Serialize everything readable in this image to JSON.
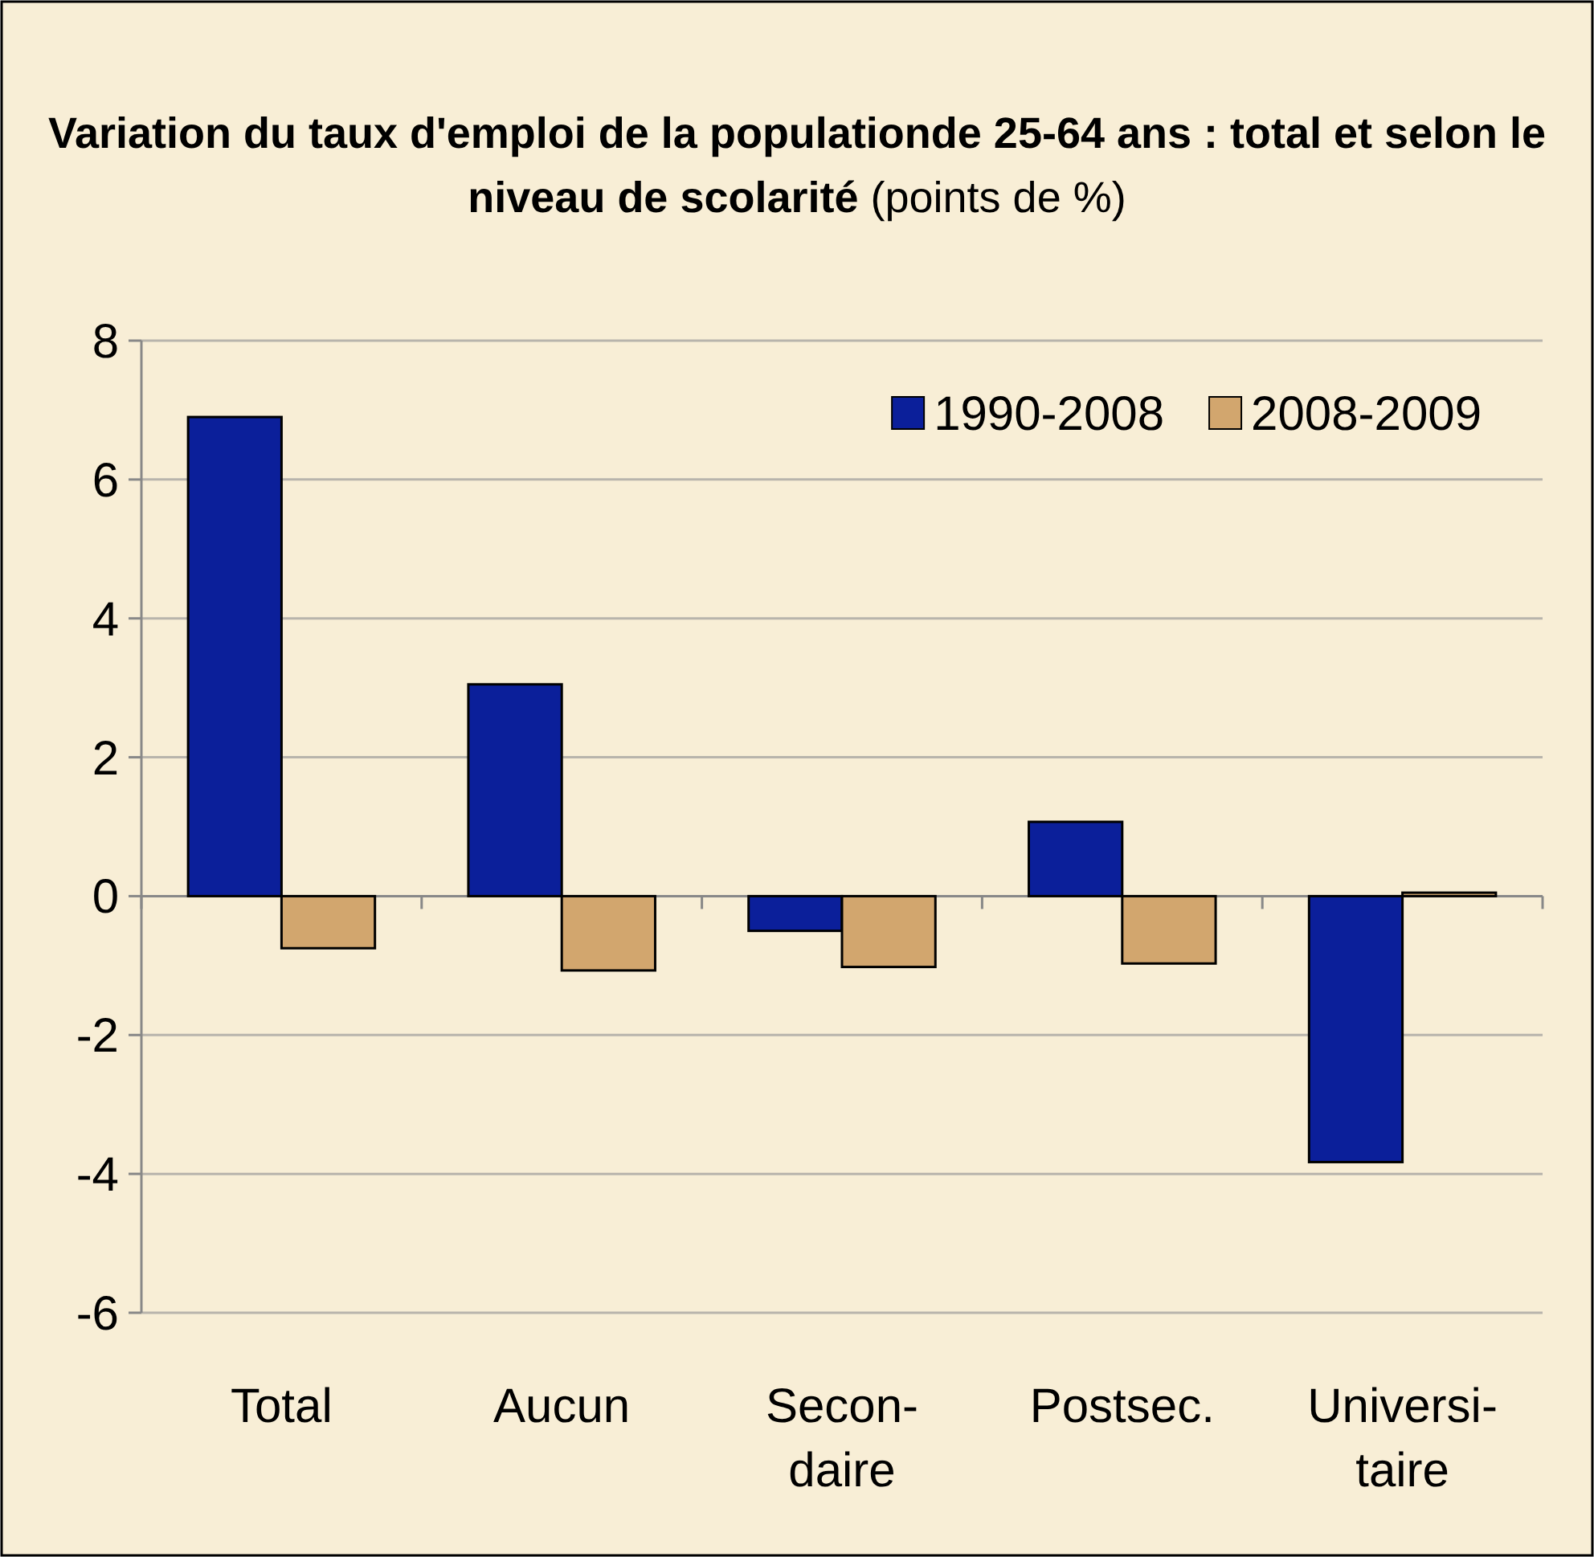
{
  "chart_data": {
    "type": "bar",
    "title": "Variation du taux d'emploi de la populationde 25-64 ans : total et selon le niveau de scolarité",
    "subtitle": "(points de %)",
    "categories": [
      "Total",
      "Aucun",
      "Secon-daire",
      "Postsec.",
      "Universi-taire"
    ],
    "series": [
      {
        "name": "1990-2008",
        "color": "#0b1f9a",
        "values": [
          6.9,
          3.05,
          -0.5,
          1.07,
          -3.83
        ]
      },
      {
        "name": "2008-2009",
        "color": "#d2a66e",
        "values": [
          -0.75,
          -1.07,
          -1.02,
          -0.97,
          0.05
        ]
      }
    ],
    "ylim": [
      -6,
      8
    ],
    "yticks": [
      -6,
      -4,
      -2,
      0,
      2,
      4,
      6,
      8
    ],
    "grid": "y",
    "legend": "top right"
  }
}
